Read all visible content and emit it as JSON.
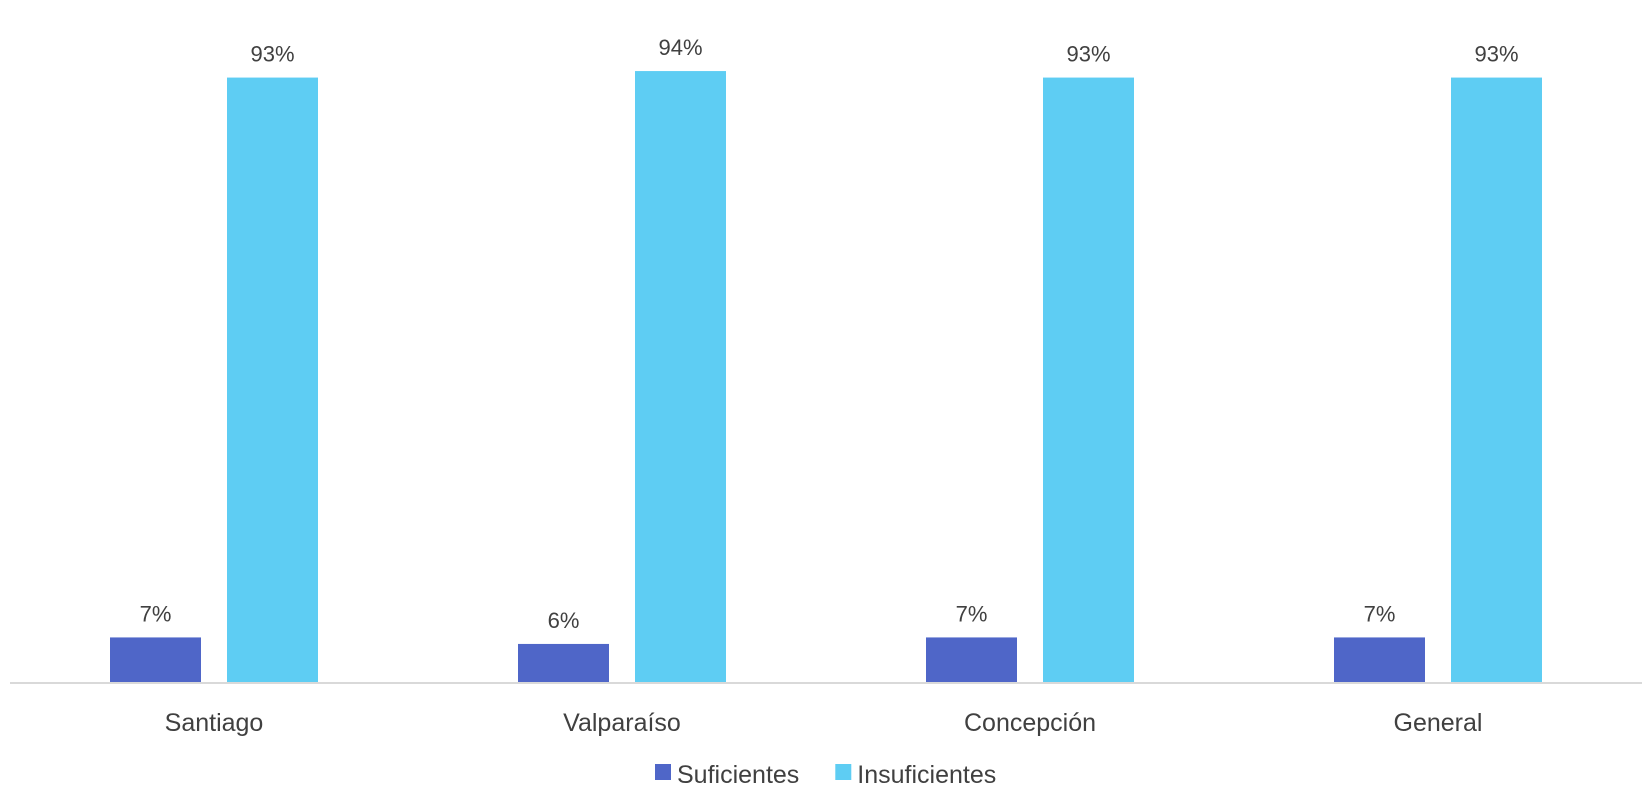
{
  "chart_data": {
    "type": "bar",
    "categories": [
      "Santiago",
      "Valparaíso",
      "Concepción",
      "General"
    ],
    "series": [
      {
        "name": "Suficientes",
        "color": "#4f66c8",
        "values": [
          7,
          6,
          7,
          7
        ],
        "labels": [
          "7%",
          "6%",
          "7%",
          "7%"
        ]
      },
      {
        "name": "Insuficientes",
        "color": "#5ecdf3",
        "values": [
          93,
          94,
          93,
          93
        ],
        "labels": [
          "93%",
          "94%",
          "93%",
          "93%"
        ]
      }
    ],
    "ylim": [
      0,
      100
    ],
    "grid": false,
    "legend_position": "bottom"
  }
}
